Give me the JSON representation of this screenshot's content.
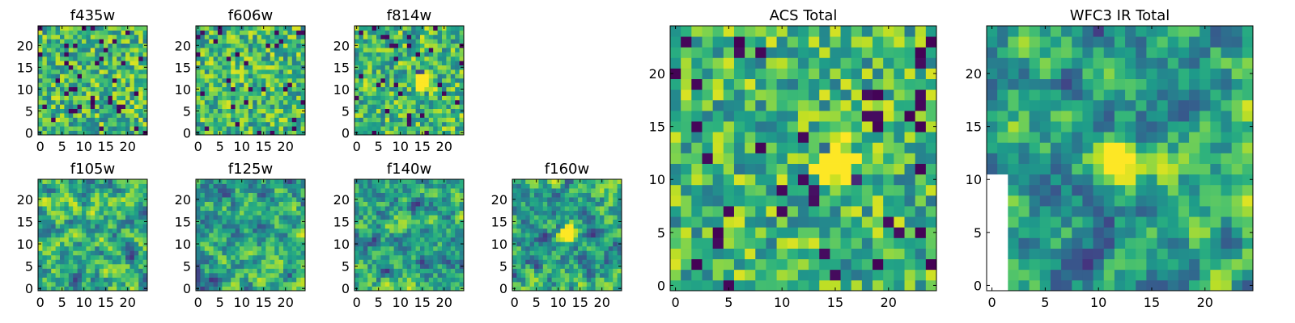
{
  "figure": {
    "colormap": "viridis",
    "background": "#ffffff"
  },
  "chart_data": [
    {
      "type": "heatmap",
      "title": "f435w",
      "grid_shape": [
        25,
        25
      ],
      "xlim": [
        -0.5,
        24.5
      ],
      "ylim": [
        -0.5,
        24.5
      ],
      "xticks": [
        0,
        5,
        10,
        15,
        20
      ],
      "yticks": [
        0,
        5,
        10,
        15,
        20
      ],
      "xtick_labels": [
        "0",
        "5",
        "10",
        "15",
        "20"
      ],
      "ytick_labels": [
        "0",
        "5",
        "10",
        "15",
        "20"
      ],
      "texture": "noisy",
      "grid": false
    },
    {
      "type": "heatmap",
      "title": "f606w",
      "grid_shape": [
        25,
        25
      ],
      "xlim": [
        -0.5,
        24.5
      ],
      "ylim": [
        -0.5,
        24.5
      ],
      "xticks": [
        0,
        5,
        10,
        15,
        20
      ],
      "yticks": [
        0,
        5,
        10,
        15,
        20
      ],
      "xtick_labels": [
        "0",
        "5",
        "10",
        "15",
        "20"
      ],
      "ytick_labels": [
        "0",
        "5",
        "10",
        "15",
        "20"
      ],
      "texture": "noisy",
      "grid": false
    },
    {
      "type": "heatmap",
      "title": "f814w",
      "grid_shape": [
        25,
        25
      ],
      "xlim": [
        -0.5,
        24.5
      ],
      "ylim": [
        -0.5,
        24.5
      ],
      "xticks": [
        0,
        5,
        10,
        15,
        20
      ],
      "yticks": [
        0,
        5,
        10,
        15,
        20
      ],
      "xtick_labels": [
        "0",
        "5",
        "10",
        "15",
        "20"
      ],
      "ytick_labels": [
        "0",
        "5",
        "10",
        "15",
        "20"
      ],
      "texture": "noisy",
      "bright_spot_center": [
        15,
        12
      ],
      "grid": false
    },
    {
      "type": "heatmap",
      "title": "f105w",
      "grid_shape": [
        25,
        25
      ],
      "xlim": [
        -0.5,
        24.5
      ],
      "ylim": [
        -0.5,
        24.5
      ],
      "xticks": [
        0,
        5,
        10,
        15,
        20
      ],
      "yticks": [
        0,
        5,
        10,
        15,
        20
      ],
      "xtick_labels": [
        "0",
        "5",
        "10",
        "15",
        "20"
      ],
      "ytick_labels": [
        "0",
        "5",
        "10",
        "15",
        "20"
      ],
      "texture": "smooth",
      "grid": false
    },
    {
      "type": "heatmap",
      "title": "f125w",
      "grid_shape": [
        25,
        25
      ],
      "xlim": [
        -0.5,
        24.5
      ],
      "ylim": [
        -0.5,
        24.5
      ],
      "xticks": [
        0,
        5,
        10,
        15,
        20
      ],
      "yticks": [
        0,
        5,
        10,
        15,
        20
      ],
      "xtick_labels": [
        "0",
        "5",
        "10",
        "15",
        "20"
      ],
      "ytick_labels": [
        "0",
        "5",
        "10",
        "15",
        "20"
      ],
      "texture": "smooth",
      "grid": false
    },
    {
      "type": "heatmap",
      "title": "f140w",
      "grid_shape": [
        25,
        25
      ],
      "xlim": [
        -0.5,
        24.5
      ],
      "ylim": [
        -0.5,
        24.5
      ],
      "xticks": [
        0,
        5,
        10,
        15,
        20
      ],
      "yticks": [
        0,
        5,
        10,
        15,
        20
      ],
      "xtick_labels": [
        "0",
        "5",
        "10",
        "15",
        "20"
      ],
      "ytick_labels": [
        "0",
        "5",
        "10",
        "15",
        "20"
      ],
      "texture": "smooth",
      "grid": false
    },
    {
      "type": "heatmap",
      "title": "f160w",
      "grid_shape": [
        25,
        25
      ],
      "xlim": [
        -0.5,
        24.5
      ],
      "ylim": [
        -0.5,
        24.5
      ],
      "xticks": [
        0,
        5,
        10,
        15,
        20
      ],
      "yticks": [
        0,
        5,
        10,
        15,
        20
      ],
      "xtick_labels": [
        "0",
        "5",
        "10",
        "15",
        "20"
      ],
      "ytick_labels": [
        "0",
        "5",
        "10",
        "15",
        "20"
      ],
      "texture": "smooth",
      "bright_spot_center": [
        12,
        12
      ],
      "grid": false
    },
    {
      "type": "heatmap",
      "title": "ACS Total",
      "grid_shape": [
        25,
        25
      ],
      "xlim": [
        -0.5,
        24.5
      ],
      "ylim": [
        -0.5,
        24.5
      ],
      "xticks": [
        0,
        5,
        10,
        15,
        20
      ],
      "yticks": [
        0,
        5,
        10,
        15,
        20
      ],
      "xtick_labels": [
        "0",
        "5",
        "10",
        "15",
        "20"
      ],
      "ytick_labels": [
        "0",
        "5",
        "10",
        "15",
        "20"
      ],
      "texture": "noisy",
      "bright_spot_center": [
        15,
        11.5
      ],
      "grid": false
    },
    {
      "type": "heatmap",
      "title": "WFC3 IR Total",
      "grid_shape": [
        25,
        25
      ],
      "xlim": [
        -0.5,
        24.5
      ],
      "ylim": [
        -0.5,
        24.5
      ],
      "xticks": [
        0,
        5,
        10,
        15,
        20
      ],
      "yticks": [
        0,
        5,
        10,
        15,
        20
      ],
      "xtick_labels": [
        "0",
        "5",
        "10",
        "15",
        "20"
      ],
      "ytick_labels": [
        "0",
        "5",
        "10",
        "15",
        "20"
      ],
      "texture": "smooth",
      "bright_spot_center": [
        12,
        12
      ],
      "masked_region": "left strip x 0-2, y 0-10",
      "grid": false
    }
  ]
}
